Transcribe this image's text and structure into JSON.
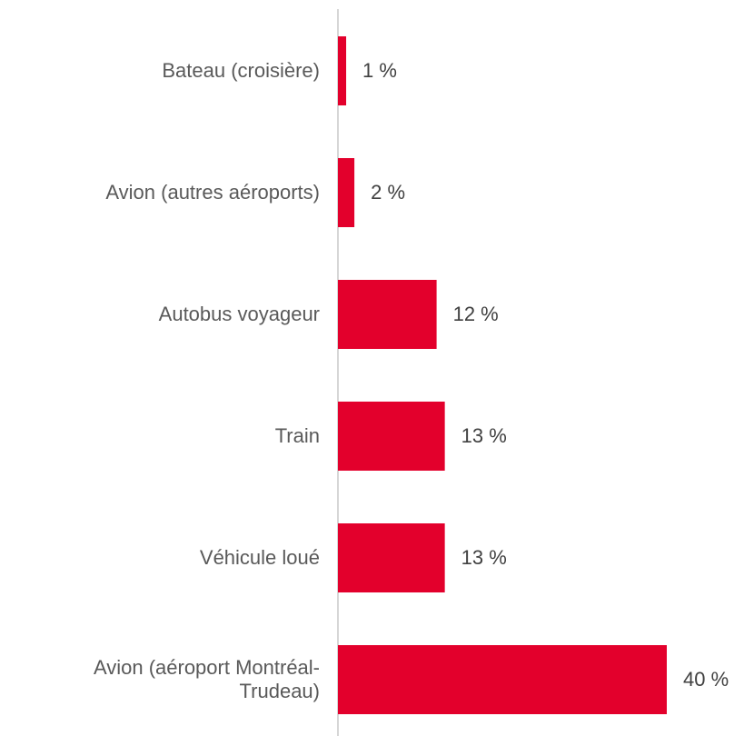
{
  "chart_data": {
    "type": "hbar",
    "categories": [
      "Bateau (croisière)",
      "Avion (autres aéroports)",
      "Autobus voyageur",
      "Train",
      "Véhicule loué",
      "Avion (aéroport Montréal-\nTrudeau)"
    ],
    "values": [
      1,
      2,
      12,
      13,
      13,
      40
    ],
    "value_labels": [
      "1 %",
      "2 %",
      "12 %",
      "13 %",
      "13 %",
      "40 %"
    ],
    "color": "#e3002c",
    "xlim": [
      0,
      40
    ]
  }
}
